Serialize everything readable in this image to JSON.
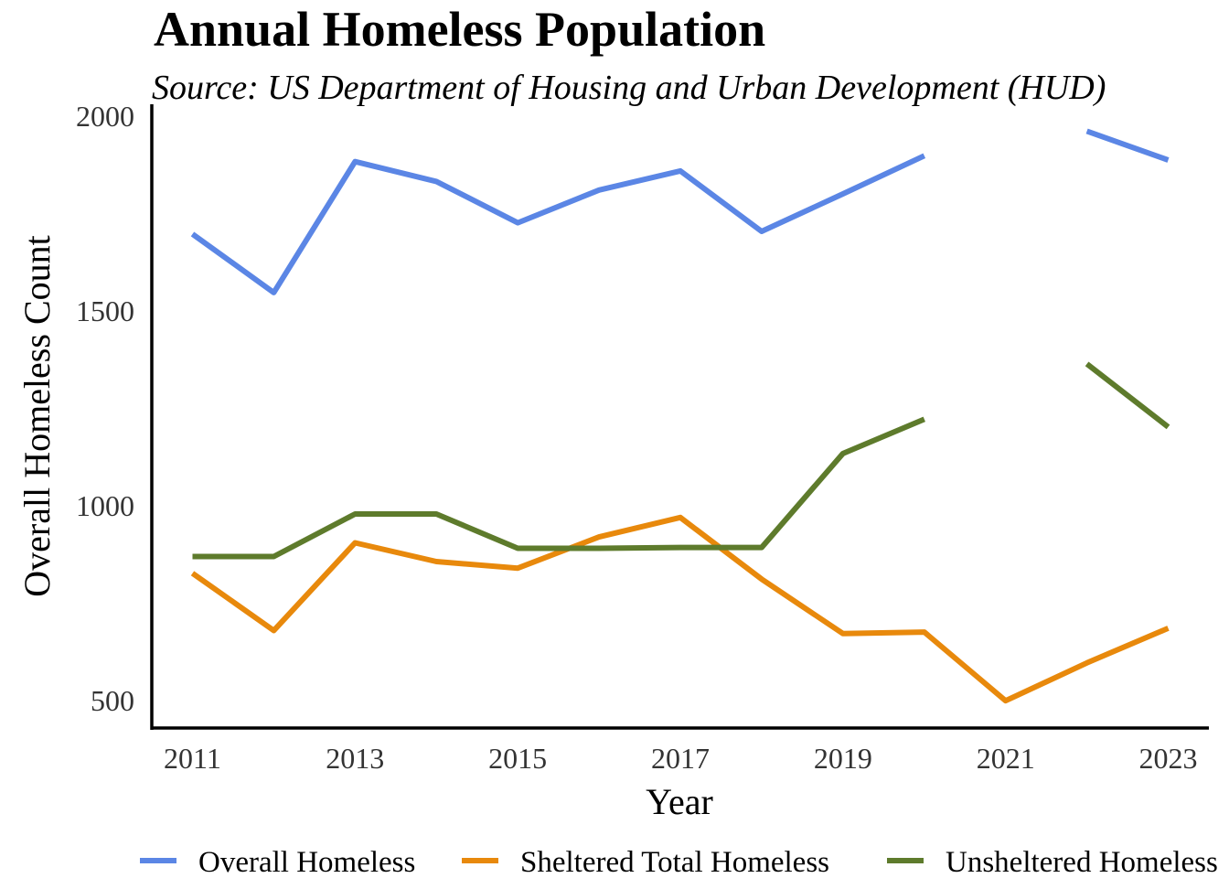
{
  "chart_data": {
    "type": "line",
    "title": "Annual Homeless Population",
    "subtitle": "Source: US Department of Housing and Urban Development (HUD)",
    "xlabel": "Year",
    "ylabel": "Overall Homeless Count",
    "x": [
      2011,
      2012,
      2013,
      2014,
      2015,
      2016,
      2017,
      2018,
      2019,
      2020,
      2021,
      2022,
      2023
    ],
    "xticks": [
      2011,
      2013,
      2015,
      2017,
      2019,
      2021,
      2023
    ],
    "yticks": [
      500,
      1000,
      1500,
      2000
    ],
    "xlim": [
      2010.5,
      2023.5
    ],
    "ylim": [
      430,
      2030
    ],
    "grid": false,
    "legend_position": "bottom",
    "series": [
      {
        "name": "Overall Homeless",
        "color": "#5b86e5",
        "values": [
          1697,
          1547,
          1883,
          1832,
          1726,
          1810,
          1859,
          1704,
          1800,
          1898,
          null,
          1961,
          1887
        ]
      },
      {
        "name": "Sheltered Total Homeless",
        "color": "#e8890c",
        "values": [
          827,
          680,
          905,
          857,
          840,
          920,
          970,
          812,
          672,
          676,
          500,
          597,
          686
        ]
      },
      {
        "name": "Unsheltered Homeless",
        "color": "#5e7b2c",
        "values": [
          870,
          870,
          979,
          979,
          891,
          891,
          893,
          893,
          1134,
          1222,
          null,
          1364,
          1202
        ]
      }
    ]
  }
}
